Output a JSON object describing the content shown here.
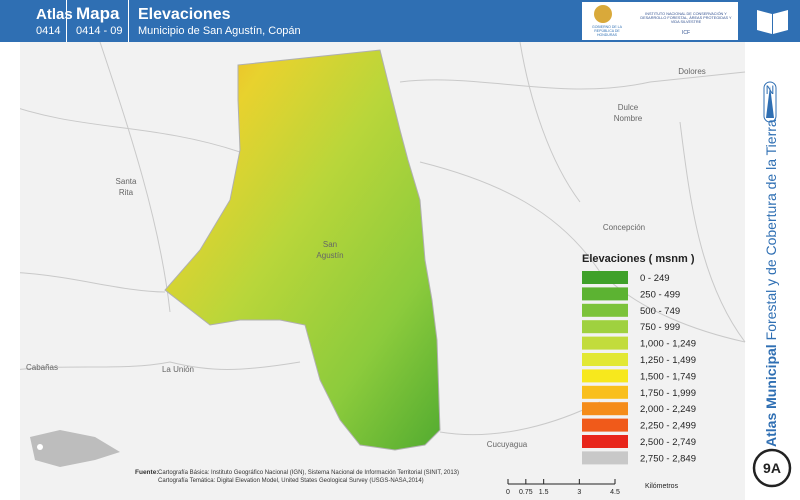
{
  "header": {
    "atlas_label": "Atlas",
    "atlas_code": "0414",
    "map_label": "Mapa",
    "map_code": "0414 - 09",
    "title": "Elevaciones",
    "subtitle": "Municipio de San Agustín, Copán"
  },
  "logo": {
    "government": "GOBIERNO DE LA REPÚBLICA DE HONDURAS",
    "institute": "INSTITUTO NACIONAL DE CONSERVACIÓN Y DESARROLLO FORESTAL, ÁREAS PROTEGIDAS Y VIDA SILVESTRE",
    "acronym": "ICF"
  },
  "places": [
    "Dolores",
    "Dulce Nombre",
    "Santa Rita",
    "San Agustín",
    "Concepción",
    "Cabañas",
    "La Unión",
    "Cucuyagua"
  ],
  "legend": {
    "title": "Elevaciones ( msnm )",
    "items": [
      {
        "label": "0 - 249",
        "color": "#3fa12a"
      },
      {
        "label": "250 - 499",
        "color": "#5cb332"
      },
      {
        "label": "500 - 749",
        "color": "#7cc33a"
      },
      {
        "label": "750 - 999",
        "color": "#9fd13f"
      },
      {
        "label": "1,000 - 1,249",
        "color": "#c2dc3c"
      },
      {
        "label": "1,250 - 1,499",
        "color": "#e2e834"
      },
      {
        "label": "1,500 - 1,749",
        "color": "#f7e81d"
      },
      {
        "label": "1,750 - 1,999",
        "color": "#f9bf1c"
      },
      {
        "label": "2,000 - 2,249",
        "color": "#f58c1a"
      },
      {
        "label": "2,250 - 2,499",
        "color": "#f05a1a"
      },
      {
        "label": "2,500 - 2,749",
        "color": "#e8261b"
      },
      {
        "label": "2,750 - 2,849",
        "color": "#c8c8c8"
      }
    ]
  },
  "north": "N",
  "side": {
    "bold": "Atlas Municipal",
    "normal": "Forestal y de Cobertura de la Tierra",
    "badge": "9A"
  },
  "sources": {
    "label": "Fuente:",
    "lines": [
      "Cartografía Básica: Instituto Geográfico Nacional (IGN), Sistema Nacional de Información Territorial (SINIT, 2013)",
      "Cartografía Temática: Digital Elevation Model, United States Geological Survey (USGS-NASA,2014)"
    ]
  },
  "scale": {
    "ticks": [
      0,
      0.75,
      1.5,
      3,
      4.5
    ],
    "unit": "Kilómetros"
  }
}
